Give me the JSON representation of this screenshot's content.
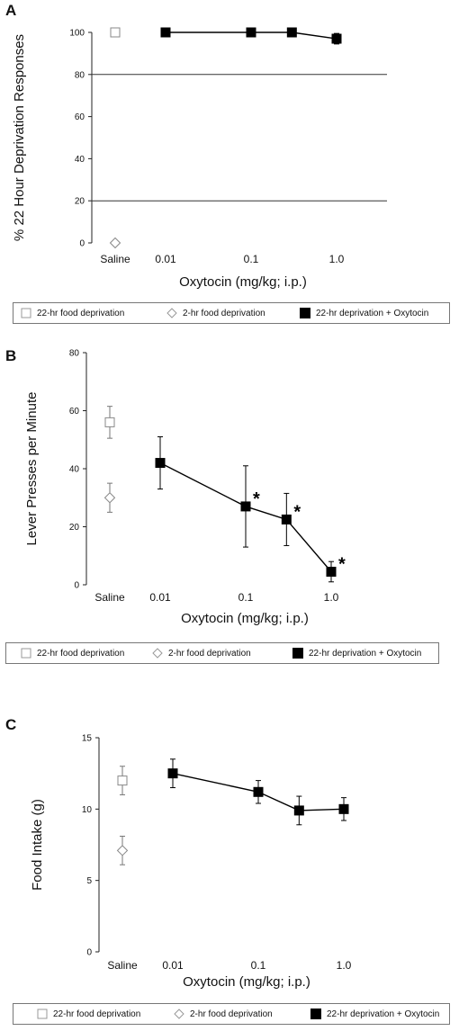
{
  "legend": {
    "open_square": "22-hr food deprivation",
    "open_diamond": "2-hr food deprivation",
    "filled_square": "22-hr deprivation + Oxytocin"
  },
  "chart_data": [
    {
      "panel": "A",
      "type": "line",
      "xlabel": "Oxytocin (mg/kg; i.p.)",
      "ylabel": "% 22 Hour Deprivation Responses",
      "ylim": [
        0,
        100
      ],
      "yticks": [
        0,
        20,
        40,
        60,
        80,
        100
      ],
      "horizontal_gridlines": [
        20,
        80
      ],
      "x_tick_labels": [
        "Saline",
        "0.01",
        "0.1",
        "1.0"
      ],
      "series": [
        {
          "name": "22-hr food deprivation",
          "marker": "open-square",
          "x": [
            "Saline"
          ],
          "y": [
            100
          ],
          "err": [
            1
          ]
        },
        {
          "name": "2-hr food deprivation",
          "marker": "open-diamond",
          "x": [
            "Saline"
          ],
          "y": [
            0
          ],
          "err": [
            0
          ]
        },
        {
          "name": "22-hr deprivation + Oxytocin",
          "marker": "filled-square",
          "x": [
            0.01,
            0.1,
            0.3,
            1.0
          ],
          "y": [
            100,
            100,
            100,
            97
          ],
          "err": [
            0,
            0,
            0,
            2.5
          ]
        }
      ]
    },
    {
      "panel": "B",
      "type": "line",
      "xlabel": "Oxytocin (mg/kg; i.p.)",
      "ylabel": "Lever Presses per Minute",
      "ylim": [
        0,
        80
      ],
      "yticks": [
        0,
        20,
        40,
        60,
        80
      ],
      "x_tick_labels": [
        "Saline",
        "0.01",
        "0.1",
        "1.0"
      ],
      "series": [
        {
          "name": "22-hr food deprivation",
          "marker": "open-square",
          "x": [
            "Saline"
          ],
          "y": [
            56
          ],
          "err": [
            5.5
          ]
        },
        {
          "name": "2-hr food deprivation",
          "marker": "open-diamond",
          "x": [
            "Saline"
          ],
          "y": [
            30
          ],
          "err": [
            5
          ]
        },
        {
          "name": "22-hr deprivation + Oxytocin",
          "marker": "filled-square",
          "x": [
            0.01,
            0.1,
            0.3,
            1.0
          ],
          "y": [
            42,
            27,
            22.5,
            4.5
          ],
          "err": [
            9,
            14,
            9,
            3.5
          ],
          "significant": [
            false,
            true,
            true,
            true
          ]
        }
      ],
      "annotation": "*"
    },
    {
      "panel": "C",
      "type": "line",
      "xlabel": "Oxytocin (mg/kg; i.p.)",
      "ylabel": "Food Intake (g)",
      "ylim": [
        0,
        15
      ],
      "yticks": [
        0,
        5,
        10,
        15
      ],
      "x_tick_labels": [
        "Saline",
        "0.01",
        "0.1",
        "1.0"
      ],
      "series": [
        {
          "name": "22-hr food deprivation",
          "marker": "open-square",
          "x": [
            "Saline"
          ],
          "y": [
            12
          ],
          "err": [
            1
          ]
        },
        {
          "name": "2-hr food deprivation",
          "marker": "open-diamond",
          "x": [
            "Saline"
          ],
          "y": [
            7.1
          ],
          "err": [
            1
          ]
        },
        {
          "name": "22-hr deprivation + Oxytocin",
          "marker": "filled-square",
          "x": [
            0.01,
            0.1,
            0.3,
            1.0
          ],
          "y": [
            12.5,
            11.2,
            9.9,
            10
          ],
          "err": [
            1,
            0.8,
            1,
            0.8
          ]
        }
      ]
    }
  ]
}
